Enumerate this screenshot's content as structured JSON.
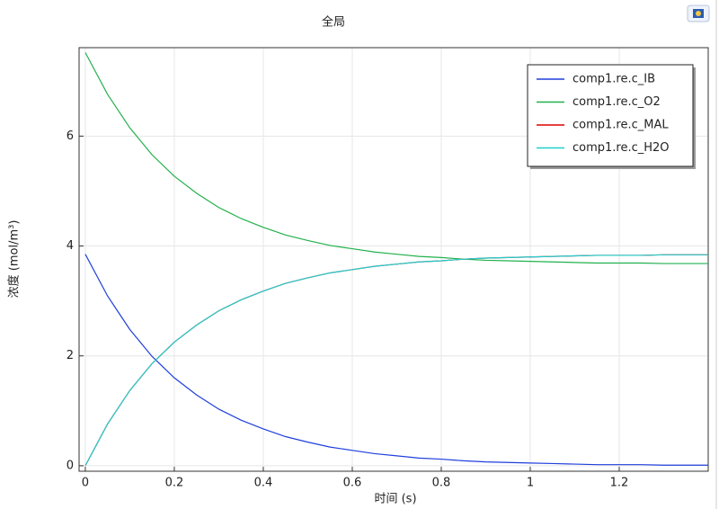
{
  "chart_data": {
    "type": "line",
    "title": "全局",
    "x_label": "时间 (s)",
    "y_label": "浓度 (mol/m³)",
    "x": [
      0,
      0.05,
      0.1,
      0.15,
      0.2,
      0.25,
      0.3,
      0.35,
      0.4,
      0.45,
      0.5,
      0.55,
      0.6,
      0.65,
      0.7,
      0.75,
      0.8,
      0.85,
      0.9,
      0.95,
      1.0,
      1.05,
      1.1,
      1.15,
      1.2,
      1.25,
      1.3,
      1.35,
      1.4
    ],
    "series": [
      {
        "name": "comp1.re.c_IB",
        "color": "#1f3fdd",
        "values": [
          3.85,
          3.09,
          2.48,
          1.99,
          1.6,
          1.29,
          1.03,
          0.83,
          0.67,
          0.53,
          0.43,
          0.34,
          0.28,
          0.22,
          0.18,
          0.14,
          0.12,
          0.09,
          0.07,
          0.06,
          0.05,
          0.04,
          0.03,
          0.02,
          0.02,
          0.02,
          0.01,
          0.01,
          0.01
        ]
      },
      {
        "name": "comp1.re.c_O2",
        "color": "#22b14c",
        "values": [
          7.52,
          6.76,
          6.15,
          5.66,
          5.27,
          4.96,
          4.7,
          4.5,
          4.34,
          4.2,
          4.1,
          4.01,
          3.95,
          3.89,
          3.85,
          3.81,
          3.79,
          3.76,
          3.74,
          3.73,
          3.72,
          3.71,
          3.7,
          3.69,
          3.69,
          3.69,
          3.68,
          3.68,
          3.68
        ]
      },
      {
        "name": "comp1.re.c_MAL",
        "color": "#dd0000",
        "values": [
          0,
          0.76,
          1.37,
          1.86,
          2.25,
          2.56,
          2.82,
          3.02,
          3.18,
          3.32,
          3.42,
          3.51,
          3.57,
          3.63,
          3.67,
          3.71,
          3.73,
          3.76,
          3.78,
          3.79,
          3.8,
          3.81,
          3.82,
          3.83,
          3.83,
          3.83,
          3.84,
          3.84,
          3.84
        ]
      },
      {
        "name": "comp1.re.c_H2O",
        "color": "#1fd0d0",
        "values": [
          0,
          0.76,
          1.37,
          1.86,
          2.25,
          2.56,
          2.82,
          3.02,
          3.18,
          3.32,
          3.42,
          3.51,
          3.57,
          3.63,
          3.67,
          3.71,
          3.73,
          3.76,
          3.78,
          3.79,
          3.8,
          3.81,
          3.82,
          3.83,
          3.83,
          3.83,
          3.84,
          3.84,
          3.84
        ]
      }
    ],
    "xlim": [
      -0.014,
      1.4
    ],
    "ylim": [
      -0.1,
      7.61
    ],
    "xticks": [
      0,
      0.2,
      0.4,
      0.6,
      0.8,
      1,
      1.2
    ],
    "yticks": [
      0,
      2,
      4,
      6
    ],
    "grid": true,
    "legend": "upper right"
  }
}
